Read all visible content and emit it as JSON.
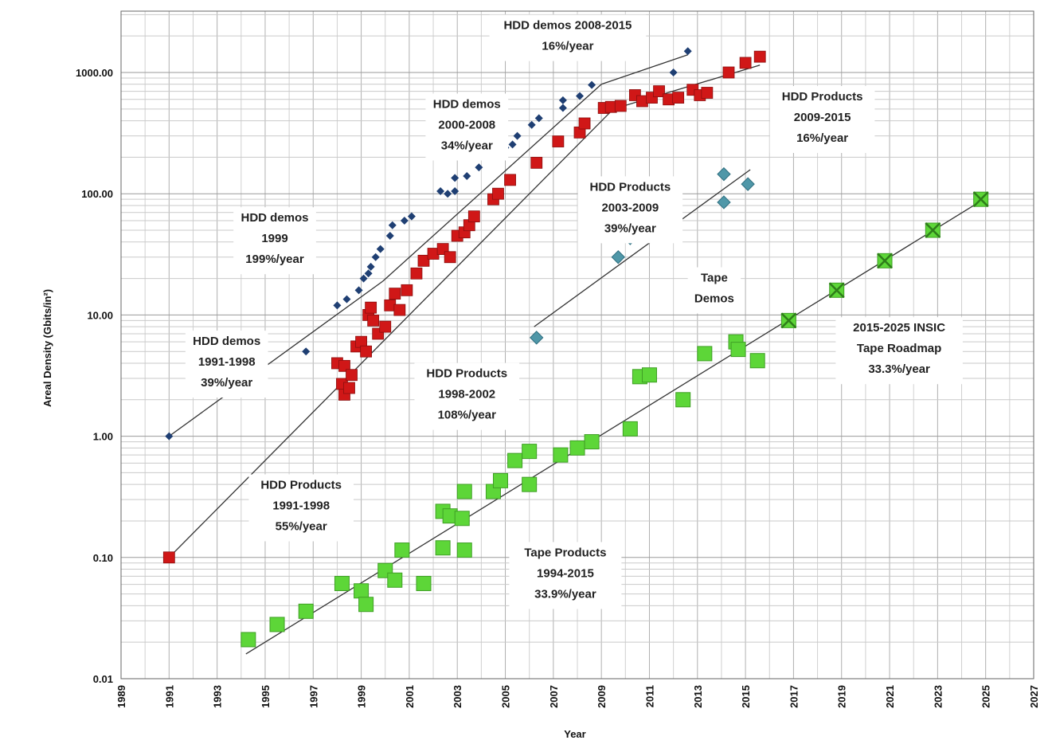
{
  "chart_data": {
    "type": "scatter",
    "title": "",
    "xlabel": "Year",
    "ylabel": "Areal Density (Gbits/in²)",
    "xlim": [
      1989,
      2027
    ],
    "ylim": [
      0.01,
      3000
    ],
    "yscale": "log",
    "grid": true,
    "x_ticks": [
      "1989",
      "1991",
      "1993",
      "1995",
      "1997",
      "1999",
      "2001",
      "2003",
      "2005",
      "2007",
      "2009",
      "2011",
      "2013",
      "2015",
      "2017",
      "2019",
      "2021",
      "2023",
      "2025",
      "2027"
    ],
    "y_ticks": [
      "0.01",
      "0.10",
      "1.00",
      "10.00",
      "100.00",
      "1000.00"
    ],
    "y_tick_values": [
      0.01,
      0.1,
      1,
      10,
      100,
      1000
    ],
    "series": [
      {
        "key": "hdd_demos",
        "marker": "diamond",
        "color": "#1f3f73",
        "points": [
          [
            1991.0,
            1.0
          ],
          [
            1993.6,
            3.0
          ],
          [
            1996.7,
            5.0
          ],
          [
            1998.0,
            12
          ],
          [
            1998.4,
            13.5
          ],
          [
            1998.9,
            16
          ],
          [
            1999.1,
            20
          ],
          [
            1999.3,
            22
          ],
          [
            1999.4,
            25
          ],
          [
            1999.6,
            30
          ],
          [
            1999.8,
            35
          ],
          [
            2000.2,
            45
          ],
          [
            2000.3,
            55
          ],
          [
            2000.8,
            60
          ],
          [
            2001.1,
            65
          ],
          [
            2002.3,
            105
          ],
          [
            2002.6,
            100
          ],
          [
            2002.9,
            105
          ],
          [
            2002.9,
            135
          ],
          [
            2003.4,
            140
          ],
          [
            2003.9,
            165
          ],
          [
            2004.9,
            235
          ],
          [
            2005.0,
            240
          ],
          [
            2005.3,
            255
          ],
          [
            2005.5,
            300
          ],
          [
            2006.1,
            370
          ],
          [
            2006.4,
            420
          ],
          [
            2007.4,
            510
          ],
          [
            2007.4,
            590
          ],
          [
            2008.1,
            640
          ],
          [
            2008.6,
            790
          ],
          [
            2012.0,
            1000
          ],
          [
            2012.6,
            1500
          ]
        ]
      },
      {
        "key": "hdd_products",
        "marker": "square",
        "color": "#d01717",
        "points": [
          [
            1991.0,
            0.1
          ],
          [
            1998.0,
            4.0
          ],
          [
            1998.3,
            3.8
          ],
          [
            1998.2,
            2.7
          ],
          [
            1998.3,
            2.2
          ],
          [
            1998.5,
            2.5
          ],
          [
            1998.6,
            3.2
          ],
          [
            1998.8,
            5.5
          ],
          [
            1999.0,
            6.0
          ],
          [
            1999.2,
            5.0
          ],
          [
            1999.3,
            10
          ],
          [
            1999.4,
            11.5
          ],
          [
            1999.5,
            9.0
          ],
          [
            1999.7,
            7.0
          ],
          [
            2000.0,
            8.0
          ],
          [
            2000.2,
            12
          ],
          [
            2000.4,
            15
          ],
          [
            2000.6,
            11
          ],
          [
            2000.9,
            16
          ],
          [
            2001.3,
            22
          ],
          [
            2001.6,
            28
          ],
          [
            2002.0,
            32
          ],
          [
            2002.4,
            35
          ],
          [
            2002.7,
            30
          ],
          [
            2003.0,
            45
          ],
          [
            2003.3,
            48
          ],
          [
            2003.5,
            55
          ],
          [
            2003.7,
            65
          ],
          [
            2004.5,
            90
          ],
          [
            2004.7,
            100
          ],
          [
            2005.2,
            130
          ],
          [
            2006.3,
            180
          ],
          [
            2007.2,
            270
          ],
          [
            2008.1,
            320
          ],
          [
            2008.3,
            380
          ],
          [
            2009.1,
            510
          ],
          [
            2009.4,
            520
          ],
          [
            2009.8,
            530
          ],
          [
            2010.4,
            650
          ],
          [
            2010.7,
            580
          ],
          [
            2011.1,
            620
          ],
          [
            2011.4,
            700
          ],
          [
            2011.8,
            600
          ],
          [
            2012.2,
            620
          ],
          [
            2012.8,
            720
          ],
          [
            2013.1,
            650
          ],
          [
            2013.4,
            680
          ],
          [
            2014.3,
            1000
          ],
          [
            2015.0,
            1200
          ],
          [
            2015.6,
            1350
          ]
        ]
      },
      {
        "key": "tape_demos",
        "marker": "diamond-large",
        "color": "#4f97a8",
        "points": [
          [
            2006.3,
            6.5
          ],
          [
            2009.7,
            30
          ],
          [
            2010.2,
            43
          ],
          [
            2014.1,
            145
          ],
          [
            2014.1,
            85
          ],
          [
            2015.1,
            120
          ]
        ]
      },
      {
        "key": "tape_products",
        "marker": "square-large",
        "color": "#5dd638",
        "points": [
          [
            1994.3,
            0.021
          ],
          [
            1995.5,
            0.028
          ],
          [
            1996.7,
            0.036
          ],
          [
            1998.2,
            0.061
          ],
          [
            1999.0,
            0.053
          ],
          [
            1999.2,
            0.041
          ],
          [
            2000.0,
            0.078
          ],
          [
            2000.4,
            0.065
          ],
          [
            2000.7,
            0.115
          ],
          [
            2001.6,
            0.061
          ],
          [
            2002.4,
            0.24
          ],
          [
            2002.7,
            0.22
          ],
          [
            2003.2,
            0.21
          ],
          [
            2002.4,
            0.12
          ],
          [
            2003.3,
            0.35
          ],
          [
            2003.3,
            0.115
          ],
          [
            2004.5,
            0.35
          ],
          [
            2004.8,
            0.43
          ],
          [
            2005.4,
            0.63
          ],
          [
            2006.0,
            0.75
          ],
          [
            2006.0,
            0.4
          ],
          [
            2007.3,
            0.7
          ],
          [
            2008.0,
            0.8
          ],
          [
            2008.6,
            0.9
          ],
          [
            2010.2,
            1.15
          ],
          [
            2010.6,
            3.1
          ],
          [
            2011.0,
            3.2
          ],
          [
            2012.4,
            2.0
          ],
          [
            2013.3,
            4.8
          ],
          [
            2014.6,
            6.0
          ],
          [
            2014.7,
            5.2
          ],
          [
            2015.5,
            4.2
          ]
        ]
      },
      {
        "key": "insic_roadmap",
        "marker": "cross-square",
        "color": "#5dd638",
        "points": [
          [
            2016.8,
            9.0
          ],
          [
            2018.8,
            16
          ],
          [
            2020.8,
            28
          ],
          [
            2022.8,
            50
          ],
          [
            2024.8,
            90
          ]
        ]
      }
    ],
    "trendlines": [
      {
        "key": "hdd_demos_1991_1998",
        "from": [
          1991.0,
          1.0
        ],
        "to": [
          1999.9,
          19.0
        ]
      },
      {
        "key": "hdd_demos_2000_2008",
        "from": [
          1999.9,
          19.0
        ],
        "to": [
          2009.0,
          800
        ]
      },
      {
        "key": "hdd_demos_2008_2015",
        "from": [
          2009.0,
          800
        ],
        "to": [
          2012.6,
          1400
        ]
      },
      {
        "key": "hdd_products_1991_2009",
        "from": [
          1991.0,
          0.1
        ],
        "to": [
          2009.5,
          500
        ]
      },
      {
        "key": "hdd_products_2009_2015",
        "from": [
          2009.5,
          500
        ],
        "to": [
          2015.6,
          1150
        ]
      },
      {
        "key": "tape_demos",
        "from": [
          2006.2,
          8.0
        ],
        "to": [
          2015.2,
          158
        ]
      },
      {
        "key": "tape_products",
        "from": [
          1994.2,
          0.016
        ],
        "to": [
          2025.0,
          92
        ]
      }
    ],
    "annotations": [
      {
        "key": "ann_hdd_demos_2008",
        "lines": [
          "HDD demos 2008-2015",
          "16%/year"
        ],
        "x": 2007.6,
        "y": 2900
      },
      {
        "key": "ann_hdd_demos_2000",
        "lines": [
          "HDD demos",
          "2000-2008",
          "34%/year"
        ],
        "x": 2003.4,
        "y": 650
      },
      {
        "key": "ann_hdd_demos_1999",
        "lines": [
          "HDD demos",
          "1999",
          "199%/year"
        ],
        "x": 1995.4,
        "y": 75
      },
      {
        "key": "ann_hdd_demos_1991",
        "lines": [
          "HDD demos",
          "1991-1998",
          "39%/year"
        ],
        "x": 1993.4,
        "y": 7.2
      },
      {
        "key": "ann_hdd_products_2009",
        "lines": [
          "HDD Products",
          "2009-2015",
          "16%/year"
        ],
        "x": 2018.2,
        "y": 750
      },
      {
        "key": "ann_hdd_products_2003",
        "lines": [
          "HDD Products",
          "2003-2009",
          "39%/year"
        ],
        "x": 2010.2,
        "y": 135
      },
      {
        "key": "ann_tape_demos",
        "lines": [
          "Tape",
          "Demos"
        ],
        "x": 2013.7,
        "y": 24
      },
      {
        "key": "ann_hdd_products_1998",
        "lines": [
          "HDD Products",
          "1998-2002",
          "108%/year"
        ],
        "x": 2003.4,
        "y": 3.9
      },
      {
        "key": "ann_insic",
        "lines": [
          "2015-2025 INSIC",
          "Tape Roadmap",
          "33.3%/year"
        ],
        "x": 2021.4,
        "y": 9.3
      },
      {
        "key": "ann_hdd_products_1991",
        "lines": [
          "HDD Products",
          "1991-1998",
          "55%/year"
        ],
        "x": 1996.5,
        "y": 0.47
      },
      {
        "key": "ann_tape_products",
        "lines": [
          "Tape Products",
          "1994-2015",
          "33.9%/year"
        ],
        "x": 2007.5,
        "y": 0.13
      }
    ]
  }
}
